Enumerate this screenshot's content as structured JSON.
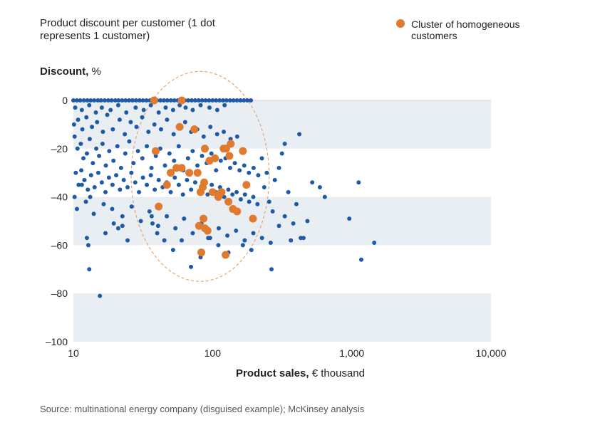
{
  "title": "Product discount per customer (1 dot represents 1 customer)",
  "legend": {
    "label": "Cluster of homogeneous customers",
    "color": "#E07A2E"
  },
  "source": "Source: multinational energy company (disguised example); McKinsey analysis",
  "chart_data": {
    "type": "scatter",
    "xlabel_bold": "Product sales,",
    "xlabel_rest": "€ thousand",
    "ylabel_bold": "Discount,",
    "ylabel_rest": "%",
    "x_scale": "log",
    "xlim": [
      10,
      10000
    ],
    "ylim": [
      -100,
      0
    ],
    "x_ticks": [
      10,
      100,
      1000,
      10000
    ],
    "x_tick_labels": [
      "10",
      "100",
      "1,000",
      "10,000"
    ],
    "y_ticks": [
      0,
      -20,
      -40,
      -60,
      -80,
      -100
    ],
    "y_tick_labels": [
      "0",
      "–20",
      "–40",
      "–60",
      "–80",
      "–100"
    ],
    "background_bands": "alternating shaded bands at 0 to -20, -40 to -60, -80 to -100",
    "colors": {
      "customer": "#1F5AA6",
      "cluster": "#E07A2E",
      "band": "#E9EEF2",
      "ellipse": "#E3A57A"
    },
    "series": [
      {
        "name": "customer",
        "color": "#1F5AA6",
        "points": [
          [
            10,
            0
          ],
          [
            10.6,
            0
          ],
          [
            11.2,
            0
          ],
          [
            11.9,
            0
          ],
          [
            12.6,
            0
          ],
          [
            13.3,
            0
          ],
          [
            14.1,
            0
          ],
          [
            15,
            0
          ],
          [
            15.8,
            0
          ],
          [
            16.8,
            0
          ],
          [
            17.8,
            0
          ],
          [
            18.8,
            0
          ],
          [
            20,
            0
          ],
          [
            21.1,
            0
          ],
          [
            22.4,
            0
          ],
          [
            23.7,
            0
          ],
          [
            25.1,
            0
          ],
          [
            26.6,
            0
          ],
          [
            28.2,
            0
          ],
          [
            29.9,
            0
          ],
          [
            31.6,
            0
          ],
          [
            33.5,
            0
          ],
          [
            35.5,
            0
          ],
          [
            37.6,
            0
          ],
          [
            39.8,
            0
          ],
          [
            42.2,
            0
          ],
          [
            44.7,
            0
          ],
          [
            47.3,
            0
          ],
          [
            50.1,
            0
          ],
          [
            53.1,
            0
          ],
          [
            56.2,
            0
          ],
          [
            59.6,
            0
          ],
          [
            63.1,
            0
          ],
          [
            66.8,
            0
          ],
          [
            70.8,
            0
          ],
          [
            75,
            0
          ],
          [
            79.4,
            0
          ],
          [
            84.1,
            0
          ],
          [
            89.1,
            0
          ],
          [
            94.4,
            0
          ],
          [
            100,
            0
          ],
          [
            105.9,
            0
          ],
          [
            112.2,
            0
          ],
          [
            118.9,
            0
          ],
          [
            125.9,
            0
          ],
          [
            133.4,
            0
          ],
          [
            141.3,
            0
          ],
          [
            149.6,
            0
          ],
          [
            158.5,
            0
          ],
          [
            167.9,
            0
          ],
          [
            177.8,
            0
          ],
          [
            188.4,
            0
          ],
          [
            10.3,
            -3
          ],
          [
            11.5,
            -4
          ],
          [
            13,
            -2
          ],
          [
            14.5,
            -5
          ],
          [
            16,
            -3
          ],
          [
            18.5,
            -4
          ],
          [
            21,
            -2
          ],
          [
            24,
            -5
          ],
          [
            28,
            -3
          ],
          [
            32,
            -4
          ],
          [
            36,
            -2
          ],
          [
            41,
            -5
          ],
          [
            46,
            -3
          ],
          [
            52,
            -4
          ],
          [
            58,
            -2
          ],
          [
            64,
            -3
          ],
          [
            72,
            -4
          ],
          [
            82,
            -2
          ],
          [
            95,
            -3
          ],
          [
            108,
            -4
          ],
          [
            122,
            -2
          ],
          [
            10.1,
            -10
          ],
          [
            10.8,
            -8
          ],
          [
            11.6,
            -12
          ],
          [
            12.4,
            -7
          ],
          [
            13.6,
            -11
          ],
          [
            14.8,
            -9
          ],
          [
            16.3,
            -13
          ],
          [
            17.5,
            -6
          ],
          [
            19.2,
            -12
          ],
          [
            21.5,
            -8
          ],
          [
            23.4,
            -14
          ],
          [
            25.8,
            -9
          ],
          [
            28.4,
            -11
          ],
          [
            31.2,
            -7
          ],
          [
            34.6,
            -13
          ],
          [
            38.2,
            -10
          ],
          [
            42.6,
            -12
          ],
          [
            47.1,
            -8
          ],
          [
            52.5,
            -14
          ],
          [
            57.8,
            -11
          ],
          [
            63.5,
            -9
          ],
          [
            70.2,
            -13
          ],
          [
            77.6,
            -12
          ],
          [
            86.3,
            -15
          ],
          [
            96.4,
            -11
          ],
          [
            107.8,
            -14
          ],
          [
            120.3,
            -13
          ],
          [
            134.7,
            -16
          ],
          [
            150.2,
            -15
          ],
          [
            10.2,
            -15
          ],
          [
            10.7,
            -20
          ],
          [
            11.3,
            -18
          ],
          [
            11.8,
            -24
          ],
          [
            12.5,
            -22
          ],
          [
            13.1,
            -16
          ],
          [
            13.8,
            -26
          ],
          [
            14.6,
            -20
          ],
          [
            15.3,
            -23
          ],
          [
            16.2,
            -18
          ],
          [
            17.1,
            -27
          ],
          [
            18.1,
            -21
          ],
          [
            19.4,
            -25
          ],
          [
            20.7,
            -19
          ],
          [
            22,
            -28
          ],
          [
            23.6,
            -22
          ],
          [
            25.2,
            -17
          ],
          [
            27,
            -26
          ],
          [
            29.1,
            -21
          ],
          [
            31.3,
            -24
          ],
          [
            33.7,
            -19
          ],
          [
            36.4,
            -28
          ],
          [
            39.1,
            -23
          ],
          [
            42.1,
            -20
          ],
          [
            45.5,
            -27
          ],
          [
            49,
            -22
          ],
          [
            52.9,
            -25
          ],
          [
            57.1,
            -19
          ],
          [
            61.6,
            -29
          ],
          [
            66.6,
            -24
          ],
          [
            71.9,
            -21
          ],
          [
            77.8,
            -27
          ],
          [
            84,
            -23
          ],
          [
            90.8,
            -26
          ],
          [
            98.1,
            -22
          ],
          [
            106,
            -29
          ],
          [
            114.5,
            -25
          ],
          [
            123.8,
            -24
          ],
          [
            133.7,
            -28
          ],
          [
            144.5,
            -26
          ],
          [
            156.2,
            -29
          ],
          [
            168.8,
            -27
          ],
          [
            182.3,
            -30
          ],
          [
            197,
            -28
          ],
          [
            212.9,
            -31
          ],
          [
            10.4,
            -30
          ],
          [
            10.9,
            -35
          ],
          [
            11.4,
            -29
          ],
          [
            12,
            -33
          ],
          [
            12.7,
            -37
          ],
          [
            13.4,
            -31
          ],
          [
            14.2,
            -36
          ],
          [
            15.1,
            -30
          ],
          [
            16,
            -34
          ],
          [
            17,
            -38
          ],
          [
            18,
            -32
          ],
          [
            19.1,
            -35
          ],
          [
            20.3,
            -31
          ],
          [
            21.6,
            -37
          ],
          [
            23,
            -33
          ],
          [
            24.5,
            -36
          ],
          [
            26.1,
            -30
          ],
          [
            27.8,
            -34
          ],
          [
            29.6,
            -38
          ],
          [
            31.6,
            -32
          ],
          [
            33.7,
            -35
          ],
          [
            36,
            -31
          ],
          [
            38.4,
            -37
          ],
          [
            41,
            -33
          ],
          [
            43.8,
            -36
          ],
          [
            46.8,
            -34
          ],
          [
            50,
            -38
          ],
          [
            53.5,
            -32
          ],
          [
            57.2,
            -35
          ],
          [
            61.2,
            -39
          ],
          [
            65.5,
            -33
          ],
          [
            70.1,
            -37
          ],
          [
            75,
            -34
          ],
          [
            80.3,
            -38
          ],
          [
            86,
            -36
          ],
          [
            92.1,
            -39
          ],
          [
            98.6,
            -35
          ],
          [
            105.6,
            -38
          ],
          [
            113.1,
            -36
          ],
          [
            121.1,
            -40
          ],
          [
            129.7,
            -37
          ],
          [
            138.9,
            -39
          ],
          [
            148.8,
            -38
          ],
          [
            159.4,
            -41
          ],
          [
            170.8,
            -39
          ],
          [
            183,
            -42
          ],
          [
            196.1,
            -40
          ],
          [
            210.1,
            -43
          ],
          [
            10.2,
            -40
          ],
          [
            10.6,
            -45
          ],
          [
            11.5,
            -35
          ],
          [
            12.3,
            -42
          ],
          [
            13.2,
            -40
          ],
          [
            14,
            -47
          ],
          [
            16.5,
            -43
          ],
          [
            19,
            -45
          ],
          [
            22.5,
            -48
          ],
          [
            26.2,
            -44
          ],
          [
            30.5,
            -50
          ],
          [
            35.2,
            -46
          ],
          [
            40.6,
            -52
          ],
          [
            46.9,
            -48
          ],
          [
            54.1,
            -53
          ],
          [
            62.4,
            -49
          ],
          [
            72,
            -55
          ],
          [
            83.1,
            -51
          ],
          [
            95.9,
            -57
          ],
          [
            110.7,
            -53
          ],
          [
            127.7,
            -56
          ],
          [
            147.4,
            -54
          ],
          [
            170.1,
            -58
          ],
          [
            196.3,
            -55
          ],
          [
            226.5,
            -57
          ],
          [
            261.4,
            -59
          ],
          [
            12.5,
            -57
          ],
          [
            12.8,
            -60
          ],
          [
            13,
            -70
          ],
          [
            15.5,
            -81
          ],
          [
            17,
            -55
          ],
          [
            19.5,
            -51
          ],
          [
            21,
            -53
          ],
          [
            22.5,
            -52
          ],
          [
            24.5,
            -58
          ],
          [
            36.5,
            -48
          ],
          [
            37,
            -51
          ],
          [
            40,
            -55
          ],
          [
            45,
            -58
          ],
          [
            52,
            -62
          ],
          [
            60,
            -58
          ],
          [
            70,
            -69
          ],
          [
            82,
            -65
          ],
          [
            93,
            -57
          ],
          [
            110,
            -60
          ],
          [
            130,
            -63
          ],
          [
            165,
            -60
          ],
          [
            190,
            -62
          ],
          [
            226,
            -24
          ],
          [
            235,
            -36
          ],
          [
            245,
            -30
          ],
          [
            255,
            -42
          ],
          [
            270,
            -46
          ],
          [
            280,
            -33
          ],
          [
            300,
            -28
          ],
          [
            315,
            -22
          ],
          [
            330,
            -18
          ],
          [
            350,
            -38
          ],
          [
            365,
            -58
          ],
          [
            380,
            -51
          ],
          [
            400,
            -43
          ],
          [
            420,
            -14
          ],
          [
            430,
            -57
          ],
          [
            450,
            -57
          ],
          [
            480,
            -50
          ],
          [
            520,
            -34
          ],
          [
            590,
            -36
          ],
          [
            640,
            -40
          ],
          [
            960,
            -49
          ],
          [
            1120,
            -34
          ],
          [
            1170,
            -66
          ],
          [
            1450,
            -59
          ],
          [
            265,
            -70
          ],
          [
            300,
            -52
          ],
          [
            330,
            -48
          ]
        ]
      },
      {
        "name": "Cluster of homogeneous customers",
        "color": "#E07A2E",
        "points": [
          [
            38,
            0
          ],
          [
            60,
            0
          ],
          [
            58,
            -11
          ],
          [
            74,
            -12
          ],
          [
            39,
            -21
          ],
          [
            47,
            -35
          ],
          [
            50,
            -30
          ],
          [
            55,
            -28
          ],
          [
            60,
            -28
          ],
          [
            68,
            -30
          ],
          [
            78,
            -30
          ],
          [
            82,
            -38
          ],
          [
            85,
            -36
          ],
          [
            87,
            -34
          ],
          [
            88,
            -20
          ],
          [
            95,
            -25
          ],
          [
            100,
            -38
          ],
          [
            104,
            -24
          ],
          [
            110,
            -40
          ],
          [
            112,
            -39
          ],
          [
            116,
            -38
          ],
          [
            120,
            -20
          ],
          [
            125,
            -20
          ],
          [
            130,
            -42
          ],
          [
            132,
            -23
          ],
          [
            135,
            -18
          ],
          [
            140,
            -45
          ],
          [
            150,
            -46
          ],
          [
            165,
            -21
          ],
          [
            175,
            -35
          ],
          [
            195,
            -49
          ],
          [
            80,
            -52
          ],
          [
            86,
            -49
          ],
          [
            88,
            -53
          ],
          [
            92,
            -54
          ],
          [
            83,
            -63
          ],
          [
            124,
            -64
          ],
          [
            41,
            -44
          ]
        ]
      }
    ],
    "ellipse": {
      "cx": 95,
      "cy_top": 12,
      "cy_bottom": -75,
      "x_left": 26,
      "x_right": 255
    }
  }
}
